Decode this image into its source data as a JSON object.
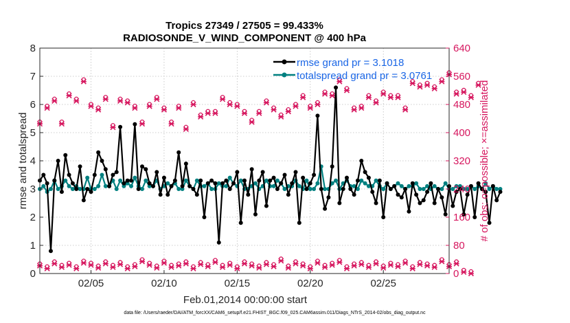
{
  "chart_data": {
    "type": "line",
    "title": "Tropics 27349 / 27505 = 99.433%",
    "subtitle": "RADIOSONDE_V_WIND_COMPONENT @ 400 hPa",
    "xlabel": "Feb.01,2014 00:00:00 start",
    "ylabel": "rmse and totalspread",
    "y2label": "# of obs: o=possible; ×=assimilated",
    "x_range_days": [
      0.5,
      28.5
    ],
    "x_ticks": [
      {
        "day": 4,
        "label": "02/05"
      },
      {
        "day": 9,
        "label": "02/10"
      },
      {
        "day": 14,
        "label": "02/15"
      },
      {
        "day": 19,
        "label": "02/20"
      },
      {
        "day": 24,
        "label": "02/25"
      }
    ],
    "ylim": [
      0,
      8
    ],
    "y_ticks": [
      "0",
      "1",
      "2",
      "3",
      "4",
      "5",
      "6",
      "7",
      "8"
    ],
    "y2lim": [
      0,
      640
    ],
    "y2_ticks": [
      "0",
      "80",
      "160",
      "240",
      "320",
      "400",
      "480",
      "560",
      "640"
    ],
    "grid": true,
    "legend_position": "top-right",
    "colors": {
      "rmse": "#000000",
      "spread": "#008080",
      "obs": "#d6165e"
    },
    "series": [
      {
        "name": "rmse grand pr = 3.1018",
        "axis": "left",
        "x_start": 0.5,
        "x_step": 0.25,
        "values": [
          3.3,
          3.5,
          3.2,
          0.8,
          3.3,
          4.0,
          2.9,
          4.2,
          3.5,
          3.2,
          3.0,
          3.8,
          2.6,
          3.0,
          2.9,
          3.5,
          4.3,
          4.0,
          3.7,
          3.1,
          3.5,
          3.6,
          5.2,
          3.2,
          3.3,
          3.3,
          5.3,
          3.0,
          3.8,
          3.7,
          3.2,
          3.1,
          3.6,
          2.8,
          3.4,
          2.8,
          3.1,
          3.3,
          4.3,
          3.1,
          3.9,
          3.1,
          3.0,
          2.8,
          3.3,
          2.0,
          3.2,
          3.3,
          3.2,
          1.1,
          3.2,
          3.3,
          3.0,
          3.2,
          3.6,
          1.8,
          3.3,
          2.8,
          3.7,
          2.1,
          3.3,
          3.6,
          2.4,
          3.3,
          3.4,
          3.0,
          3.2,
          3.5,
          2.8,
          3.2,
          3.6,
          1.8,
          3.4,
          3.0,
          3.2,
          3.5,
          5.6,
          3.0,
          2.3,
          2.7,
          3.8,
          6.6,
          2.5,
          3.0,
          3.4,
          3.0,
          2.8,
          3.3,
          4.0,
          3.6,
          3.4,
          2.9,
          2.5,
          3.3,
          2.0,
          3.2,
          3.0,
          3.1,
          2.8,
          2.7,
          3.0,
          2.2,
          3.2,
          2.8,
          2.5,
          2.6,
          2.9,
          3.2,
          2.5,
          3.0,
          2.7,
          2.1,
          3.1,
          2.4,
          2.9,
          3.0,
          2.1,
          2.8,
          3.1,
          2.0,
          3.2,
          3.0,
          2.9,
          1.8,
          3.1,
          2.6,
          2.9
        ]
      },
      {
        "name": "totalspread grand pr = 3.0761",
        "axis": "left",
        "x_start": 0.5,
        "x_step": 0.25,
        "values": [
          3.0,
          3.1,
          2.9,
          3.0,
          3.3,
          3.0,
          3.1,
          3.3,
          3.1,
          3.0,
          3.1,
          3.0,
          3.0,
          3.4,
          3.0,
          3.0,
          3.1,
          3.5,
          3.1,
          3.1,
          3.3,
          3.0,
          3.3,
          3.1,
          3.2,
          3.1,
          3.4,
          3.1,
          3.0,
          3.3,
          3.1,
          3.1,
          3.3,
          3.0,
          3.1,
          3.2,
          3.1,
          3.2,
          3.0,
          3.0,
          3.3,
          3.1,
          3.0,
          3.3,
          3.1,
          3.1,
          3.2,
          3.0,
          3.0,
          3.2,
          3.1,
          3.1,
          3.4,
          3.2,
          3.1,
          3.3,
          3.0,
          3.0,
          3.1,
          3.2,
          3.0,
          3.1,
          3.3,
          3.1,
          3.1,
          3.3,
          3.2,
          3.0,
          3.1,
          3.1,
          3.3,
          3.1,
          3.0,
          3.3,
          3.0,
          3.0,
          3.2,
          3.8,
          3.0,
          3.0,
          3.2,
          3.3,
          3.0,
          3.2,
          3.3,
          3.1,
          3.1,
          3.0,
          3.3,
          3.2,
          3.1,
          3.1,
          3.3,
          3.1,
          3.0,
          3.2,
          3.0,
          3.1,
          3.2,
          3.1,
          3.0,
          3.1,
          3.1,
          3.2,
          3.0,
          3.0,
          3.1,
          3.0,
          3.1,
          3.0,
          3.0,
          3.2,
          3.0,
          3.0,
          3.1,
          3.1,
          3.0,
          3.0,
          3.1,
          3.0,
          3.1,
          3.0,
          3.2,
          3.0,
          3.1,
          3.0,
          3.0
        ]
      },
      {
        "name": "# of obs possible / assimilated (high)",
        "axis": "right",
        "x_start": 0.5,
        "x_step": 0.5,
        "values": [
          425,
          470,
          490,
          425,
          505,
          490,
          545,
          475,
          465,
          495,
          415,
          490,
          485,
          470,
          425,
          475,
          495,
          465,
          425,
          470,
          410,
          480,
          445,
          455,
          455,
          495,
          480,
          475,
          455,
          430,
          455,
          485,
          465,
          445,
          460,
          475,
          500,
          470,
          480,
          510,
          505,
          545,
          520,
          465,
          470,
          500,
          485,
          510,
          500,
          500,
          465,
          540,
          530,
          535,
          525,
          545,
          565,
          510,
          515,
          500,
          535
        ]
      },
      {
        "name": "# of obs possible / assimilated (low)",
        "axis": "right",
        "x_start": 0.5,
        "x_step": 0.5,
        "values": [
          22,
          14,
          28,
          18,
          24,
          14,
          30,
          24,
          16,
          28,
          18,
          26,
          14,
          20,
          34,
          24,
          16,
          30,
          18,
          22,
          28,
          14,
          26,
          20,
          32,
          18,
          24,
          14,
          28,
          22,
          16,
          26,
          20,
          36,
          16,
          28,
          22,
          14,
          30,
          18,
          24,
          32,
          14,
          22,
          26,
          18,
          28,
          16,
          24,
          20,
          30,
          14,
          26,
          22,
          18,
          34,
          20,
          28,
          4,
          0
        ]
      }
    ]
  },
  "legend": {
    "rmse": "rmse grand pr = 3.1018",
    "spread": "totalspread grand pr = 3.0761"
  },
  "footnote": "data file: /Users/raeder/DAI/ATM_forcXX/CAM6_setup/f.e21.FHIST_BGC.f09_025.CAM6assim.011/Diags_NTrS_2014-02/obs_diag_output.nc"
}
